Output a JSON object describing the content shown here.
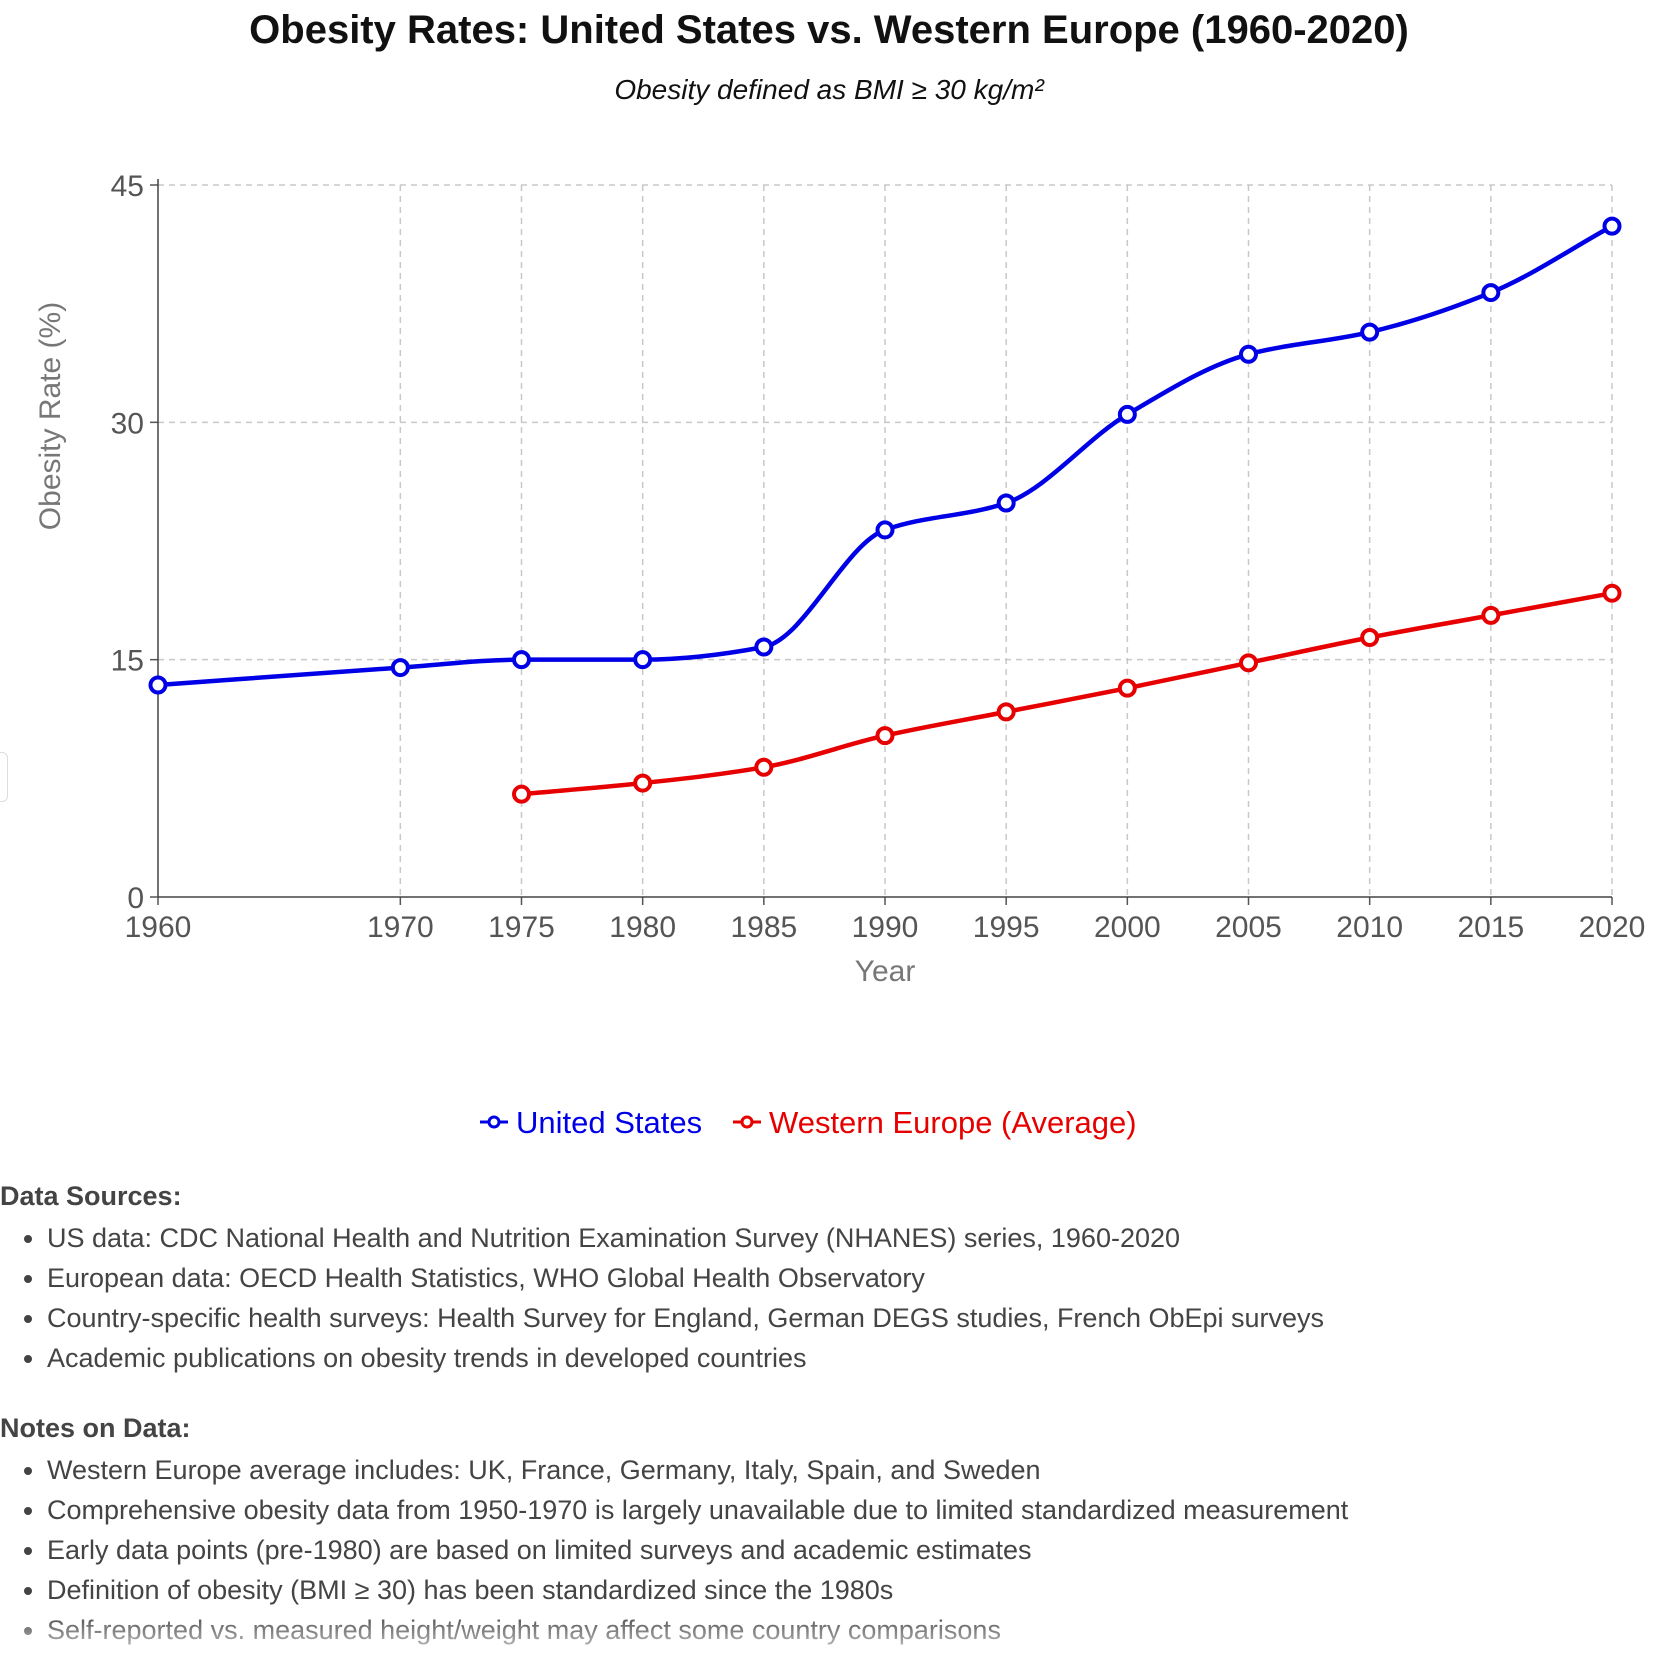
{
  "title": "Obesity Rates: United States vs. Western Europe (1960-2020)",
  "subtitle": "Obesity defined as BMI ≥ 30 kg/m²",
  "chart_data": {
    "type": "line",
    "title": "Obesity Rates: United States vs. Western Europe (1960-2020)",
    "subtitle": "Obesity defined as BMI ≥ 30 kg/m²",
    "xlabel": "Year",
    "ylabel": "Obesity Rate (%)",
    "x_ticks": [
      1960,
      1970,
      1975,
      1980,
      1985,
      1990,
      1995,
      2000,
      2005,
      2010,
      2015,
      2020
    ],
    "y_ticks": [
      0,
      15,
      30,
      45
    ],
    "ylim": [
      0,
      45
    ],
    "grid": true,
    "legend_position": "bottom-center",
    "series": [
      {
        "name": "United States",
        "color": "#0000e6",
        "x": [
          1960,
          1970,
          1975,
          1980,
          1985,
          1990,
          1995,
          2000,
          2005,
          2010,
          2015,
          2020
        ],
        "values": [
          13.4,
          14.5,
          15.0,
          15.0,
          15.8,
          23.2,
          24.9,
          30.5,
          34.3,
          35.7,
          38.2,
          42.4
        ]
      },
      {
        "name": "Western Europe (Average)",
        "color": "#e60000",
        "x": [
          1975,
          1980,
          1985,
          1990,
          1995,
          2000,
          2005,
          2010,
          2015,
          2020
        ],
        "values": [
          6.5,
          7.2,
          8.2,
          10.2,
          11.7,
          13.2,
          14.8,
          16.4,
          17.8,
          19.2
        ]
      }
    ]
  },
  "notes": {
    "sources_heading": "Data Sources:",
    "sources": [
      "US data: CDC National Health and Nutrition Examination Survey (NHANES) series, 1960-2020",
      "European data: OECD Health Statistics, WHO Global Health Observatory",
      "Country-specific health surveys: Health Survey for England, German DEGS studies, French ObEpi surveys",
      "Academic publications on obesity trends in developed countries"
    ],
    "notes_heading": "Notes on Data:",
    "notes_items": [
      "Western Europe average includes: UK, France, Germany, Italy, Spain, and Sweden",
      "Comprehensive obesity data from 1950-1970 is largely unavailable due to limited standardized measurement",
      "Early data points (pre-1980) are based on limited surveys and academic estimates",
      "Definition of obesity (BMI ≥ 30) has been standardized since the 1980s",
      "Self-reported vs. measured height/weight may affect some country comparisons"
    ]
  }
}
